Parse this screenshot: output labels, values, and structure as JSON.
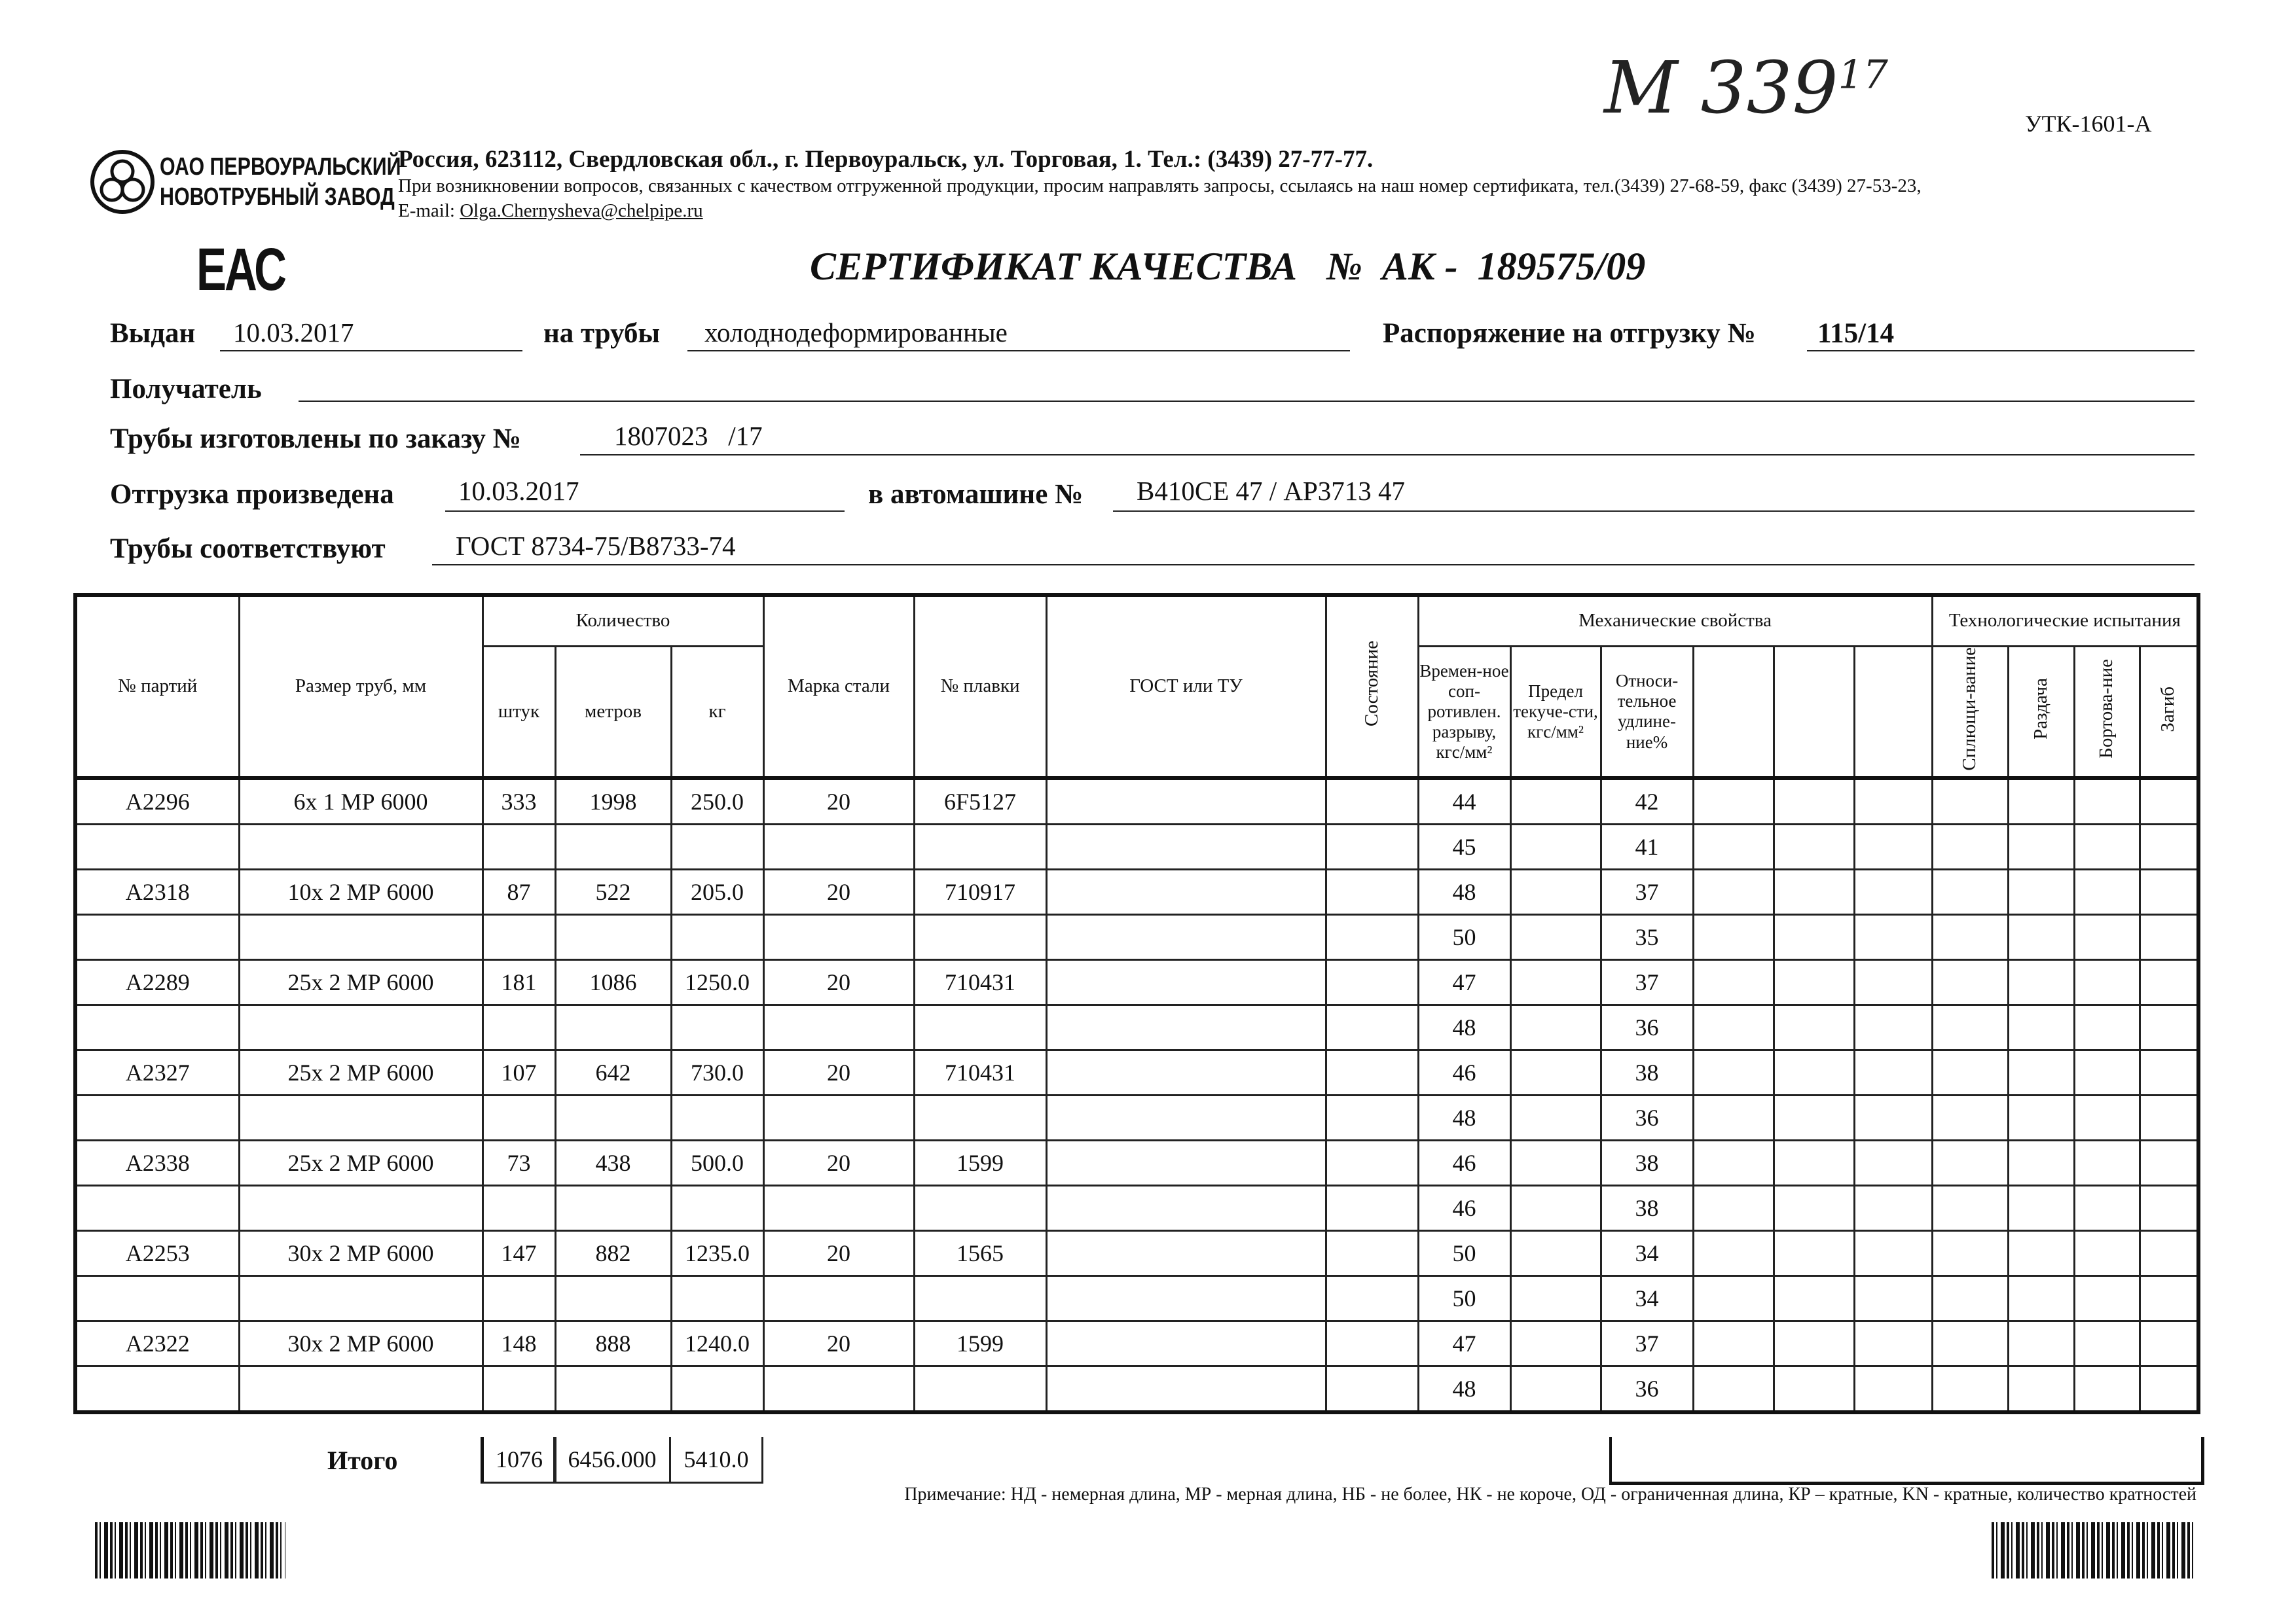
{
  "form_code": "УТК-1601-А",
  "handwritten": {
    "main": "М 339",
    "sup": "17"
  },
  "company": {
    "name_line1": "ОАО ПЕРВОУРАЛЬСКИЙ",
    "name_line2": "НОВОТРУБНЫЙ ЗАВОД",
    "address": "Россия, 623112, Свердловская обл., г. Первоуральск, ул. Торговая, 1. Тел.: (3439) 27-77-77.",
    "contact_note": "При возникновении вопросов, связанных с качеством отгруженной продукции, просим направлять запросы, ссылаясь на наш номер сертификата, тел.(3439) 27-68-59, факс (3439) 27-53-23,",
    "email_label": "E-mail:",
    "email": "Olga.Chernysheva@chelpipe.ru"
  },
  "eac_mark": "ЕАС",
  "title": "СЕРТИФИКАТ КАЧЕСТВА   №  АК -  189575/09",
  "fields": {
    "issued_label": "Выдан",
    "issued_value": "10.03.2017",
    "pipes_label": "на трубы",
    "pipes_value": "холоднодеформированные",
    "order_label": "Распоряжение на отгрузку №",
    "order_value": "115/14",
    "recipient_label": "Получатель",
    "recipient_value": "",
    "made_label": "Трубы изготовлены по заказу №",
    "made_value": "1807023   /17",
    "shipped_label": "Отгрузка произведена",
    "shipped_value": "10.03.2017",
    "vehicle_label": "в автомашине №",
    "vehicle_value": "В410СЕ 47 / АР3713 47",
    "conform_label": "Трубы соответствуют",
    "conform_value": "ГОСТ 8734-75/В8733-74"
  },
  "table": {
    "headers": {
      "party": "№ партий",
      "size": "Размер труб, мм",
      "quantity": "Количество",
      "pcs": "штук",
      "meters": "метров",
      "kg": "кг",
      "steel": "Марка стали",
      "heat": "№ плавки",
      "gost": "ГОСТ или ТУ",
      "state": "Состояние",
      "mech": "Механические свойства",
      "tensile": "Времен-ное соп-ротивлен. разрыву, кгс/мм²",
      "yield": "Предел текуче-сти, кгс/мм²",
      "elong": "Относи-тельное удлине-ние%",
      "tech": "Технологические испытания",
      "flatten": "Сплющи-вание",
      "expand": "Раздача",
      "flange": "Бортова-ние",
      "bend": "Загиб"
    },
    "rows": [
      {
        "party": "А2296",
        "size": "6х 1 МР 6000",
        "pcs": "333",
        "meters": "1998",
        "kg": "250.0",
        "steel": "20",
        "heat": "6F5127",
        "mech": [
          [
            "44",
            "42"
          ],
          [
            "45",
            "41"
          ]
        ]
      },
      {
        "party": "А2318",
        "size": "10х 2 МР 6000",
        "pcs": "87",
        "meters": "522",
        "kg": "205.0",
        "steel": "20",
        "heat": "710917",
        "mech": [
          [
            "48",
            "37"
          ],
          [
            "50",
            "35"
          ]
        ]
      },
      {
        "party": "А2289",
        "size": "25х 2 МР 6000",
        "pcs": "181",
        "meters": "1086",
        "kg": "1250.0",
        "steel": "20",
        "heat": "710431",
        "mech": [
          [
            "47",
            "37"
          ],
          [
            "48",
            "36"
          ]
        ]
      },
      {
        "party": "А2327",
        "size": "25х 2 МР 6000",
        "pcs": "107",
        "meters": "642",
        "kg": "730.0",
        "steel": "20",
        "heat": "710431",
        "mech": [
          [
            "46",
            "38"
          ],
          [
            "48",
            "36"
          ]
        ]
      },
      {
        "party": "А2338",
        "size": "25х 2 МР 6000",
        "pcs": "73",
        "meters": "438",
        "kg": "500.0",
        "steel": "20",
        "heat": "1599",
        "mech": [
          [
            "46",
            "38"
          ],
          [
            "46",
            "38"
          ]
        ]
      },
      {
        "party": "А2253",
        "size": "30х 2 МР 6000",
        "pcs": "147",
        "meters": "882",
        "kg": "1235.0",
        "steel": "20",
        "heat": "1565",
        "mech": [
          [
            "50",
            "34"
          ],
          [
            "50",
            "34"
          ]
        ]
      },
      {
        "party": "А2322",
        "size": "30х 2 МР 6000",
        "pcs": "148",
        "meters": "888",
        "kg": "1240.0",
        "steel": "20",
        "heat": "1599",
        "mech": [
          [
            "47",
            "37"
          ],
          [
            "48",
            "36"
          ]
        ]
      }
    ],
    "total": {
      "label": "Итого",
      "pcs": "1076",
      "meters": "6456.000",
      "kg": "5410.0"
    }
  },
  "note": "Примечание: НД - немерная длина, МР - мерная длина, НБ - не более, НК - не короче, ОД - ограниченная длина, КР – кратные, KN - кратные, количество кратностей"
}
